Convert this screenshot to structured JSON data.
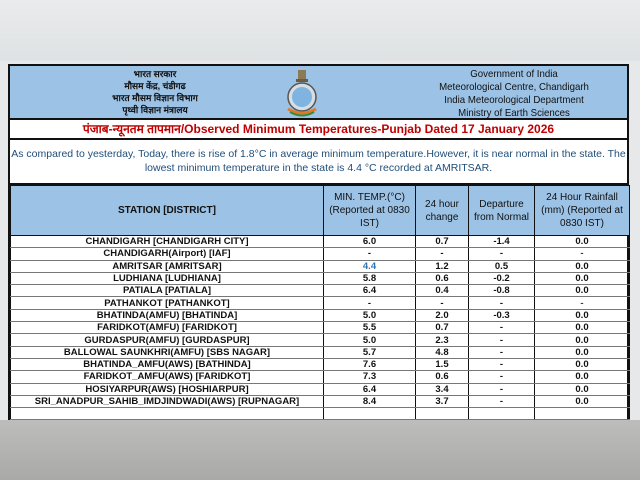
{
  "header": {
    "hindi_lines": [
      "भारत सरकार",
      "मौसम केंद्र, चंडीगढ",
      "भारत मौसम विज्ञान विभाग",
      "पृथ्वी विज्ञान मंत्रालय"
    ],
    "english_lines": [
      "Government of India",
      "Meteorological Centre, Chandigarh",
      "India Meteorological Department",
      "Ministry of Earth Sciences"
    ],
    "emblem_icon": "imd-emblem-icon"
  },
  "title": "पंजाब-न्यूनतम तापमान/Observed Minimum Temperatures-Punjab Dated 17 January 2026",
  "summary": "As compared to yesterday, Today, there is rise of 1.8°C in average minimum temperature.However, it is near normal in the state. The lowest minimum temperature in the state is 4.4 °C recorded at AMRITSAR.",
  "table": {
    "headers": [
      "STATION [DISTRICT]",
      "MIN. TEMP.(°C) (Reported at 0830 IST)",
      "24 hour change",
      "Departure from Normal",
      "24 Hour Rainfall (mm) (Reported at 0830 IST)"
    ],
    "rows": [
      [
        "CHANDIGARH  [CHANDIGARH CITY]",
        "6.0",
        "0.7",
        "-1.4",
        "0.0"
      ],
      [
        "CHANDIGARH(Airport)  [IAF]",
        "-",
        "-",
        "-",
        "-"
      ],
      [
        "AMRITSAR  [AMRITSAR]",
        "4.4",
        "1.2",
        "0.5",
        "0.0"
      ],
      [
        "LUDHIANA  [LUDHIANA]",
        "5.8",
        "0.6",
        "-0.2",
        "0.0"
      ],
      [
        "PATIALA  [PATIALA]",
        "6.4",
        "0.4",
        "-0.8",
        "0.0"
      ],
      [
        "PATHANKOT  [PATHANKOT]",
        "-",
        "-",
        "-",
        "-"
      ],
      [
        "BHATINDA(AMFU)  [BHATINDA]",
        "5.0",
        "2.0",
        "-0.3",
        "0.0"
      ],
      [
        "FARIDKOT(AMFU)  [FARIDKOT]",
        "5.5",
        "0.7",
        "-",
        "0.0"
      ],
      [
        "GURDASPUR(AMFU)  [GURDASPUR]",
        "5.0",
        "2.3",
        "-",
        "0.0"
      ],
      [
        "BALLOWAL SAUNKHRI(AMFU)  [SBS NAGAR]",
        "5.7",
        "4.8",
        "-",
        "0.0"
      ],
      [
        "BHATINDA_AMFU(AWS)  [BATHINDA]",
        "7.6",
        "1.5",
        "-",
        "0.0"
      ],
      [
        "FARIDKOT_AMFU(AWS)  [FARIDKOT]",
        "7.3",
        "0.6",
        "-",
        "0.0"
      ],
      [
        "HOSIYARPUR(AWS)  [HOSHIARPUR]",
        "6.4",
        "3.4",
        "-",
        "0.0"
      ],
      [
        "SRI_ANADPUR_SAHIB_IMDJINDWADI(AWS)  [RUPNAGAR]",
        "8.4",
        "3.7",
        "-",
        "0.0"
      ],
      [
        "",
        "",
        "",
        "",
        ""
      ]
    ],
    "lowest_station": "AMRITSAR  [AMRITSAR]"
  },
  "colors": {
    "header_bg": "#9cc2e5",
    "title": "#c00000",
    "summary": "#1f4e79",
    "lowest": "#2e74b5",
    "missing_rain": "#c00000"
  }
}
